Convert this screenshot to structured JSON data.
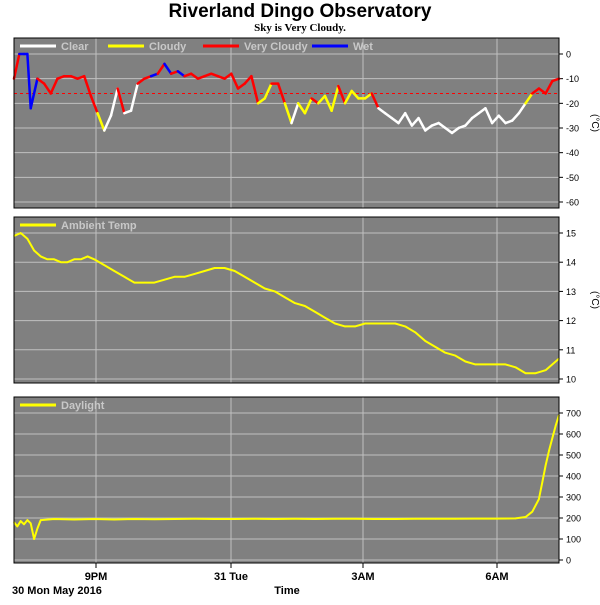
{
  "header": {
    "title": "Riverland Dingo Observatory",
    "subtitle": "Sky is Very Cloudy."
  },
  "footer": {
    "date": "30 Mon May 2016",
    "xlabel": "Time"
  },
  "x_ticks": [
    "9PM",
    "31 Tue",
    "3AM",
    "6AM"
  ],
  "colors": {
    "panel_bg": "#808080",
    "grid": "#c0c0c0",
    "clear": "#ffffff",
    "cloudy": "#ffff00",
    "very_cloudy": "#ff0000",
    "wet": "#0000ff",
    "ambient": "#ffff00",
    "daylight": "#ffff00",
    "threshold": "#ff0000"
  },
  "chart_data": [
    {
      "type": "line",
      "title": "",
      "legend": [
        "Clear",
        "Cloudy",
        "Very Cloudy",
        "Wet"
      ],
      "ylabel": "(°C)",
      "ylim": [
        -60,
        0
      ],
      "yticks": [
        "0",
        "-10",
        "-20",
        "-30",
        "-40",
        "-50",
        "-60"
      ],
      "threshold": -16,
      "x_range_hours": [
        18.0,
        24.0
      ],
      "series": [
        {
          "name": "Sky Temp",
          "x": [
            "18:00",
            "18:08",
            "18:15",
            "18:20",
            "18:25",
            "18:35",
            "18:45",
            "18:55",
            "19:05",
            "19:15",
            "19:25",
            "19:35",
            "19:45",
            "19:55",
            "20:05",
            "20:15",
            "20:25",
            "20:35",
            "20:45",
            "20:55",
            "21:05",
            "21:15",
            "21:25",
            "21:35",
            "21:45",
            "21:55",
            "22:05",
            "22:15",
            "22:25",
            "22:35",
            "22:45",
            "22:55",
            "23:05",
            "23:15",
            "23:25",
            "23:35",
            "23:45",
            "23:55",
            "00:05",
            "00:15",
            "00:25",
            "00:35",
            "00:45",
            "00:55",
            "01:05",
            "01:15",
            "01:25",
            "01:35",
            "01:45",
            "01:55",
            "02:05",
            "02:15",
            "02:25",
            "02:35",
            "02:45",
            "02:55",
            "03:05",
            "03:15",
            "03:25",
            "03:35",
            "03:45",
            "03:55",
            "04:05",
            "04:15",
            "04:25",
            "04:35",
            "04:45",
            "04:55",
            "05:05",
            "05:15",
            "05:25",
            "05:35",
            "05:45",
            "05:55",
            "06:05",
            "06:15",
            "06:25",
            "06:35",
            "06:45",
            "06:55",
            "07:05",
            "07:15",
            "07:25",
            "07:35"
          ],
          "y": [
            -10,
            0,
            0,
            0,
            -22,
            -10,
            -12,
            -16,
            -10,
            -9,
            -9,
            -10,
            -9,
            -17,
            -24,
            -31,
            -25,
            -14,
            -24,
            -23,
            -12,
            -10,
            -9,
            -8,
            -4,
            -8,
            -7,
            -9,
            -8,
            -10,
            -9,
            -8,
            -9,
            -10,
            -8,
            -14,
            -12,
            -9,
            -20,
            -18,
            -12,
            -12,
            -20,
            -28,
            -20,
            -24,
            -18,
            -20,
            -17,
            -23,
            -13,
            -20,
            -15,
            -18,
            -18,
            -16,
            -22,
            -24,
            -26,
            -28,
            -24,
            -29,
            -26,
            -31,
            -29,
            -28,
            -30,
            -32,
            -30,
            -29,
            -26,
            -24,
            -22,
            -28,
            -25,
            -28,
            -27,
            -24,
            -20,
            -16,
            -14,
            -16,
            -11,
            -10
          ],
          "condition": [
            "Very Cloudy",
            "Wet",
            "Wet",
            "Wet",
            "Wet",
            "Very Cloudy",
            "Very Cloudy",
            "Very Cloudy",
            "Very Cloudy",
            "Very Cloudy",
            "Very Cloudy",
            "Very Cloudy",
            "Very Cloudy",
            "Very Cloudy",
            "Cloudy",
            "Clear",
            "Clear",
            "Very Cloudy",
            "Clear",
            "Clear",
            "Very Cloudy",
            "Very Cloudy",
            "Wet",
            "Very Cloudy",
            "Wet",
            "Very Cloudy",
            "Wet",
            "Very Cloudy",
            "Very Cloudy",
            "Very Cloudy",
            "Very Cloudy",
            "Very Cloudy",
            "Very Cloudy",
            "Very Cloudy",
            "Very Cloudy",
            "Very Cloudy",
            "Very Cloudy",
            "Very Cloudy",
            "Cloudy",
            "Cloudy",
            "Very Cloudy",
            "Very Cloudy",
            "Cloudy",
            "Clear",
            "Cloudy",
            "Cloudy",
            "Very Cloudy",
            "Cloudy",
            "Cloudy",
            "Cloudy",
            "Very Cloudy",
            "Cloudy",
            "Cloudy",
            "Cloudy",
            "Cloudy",
            "Very Cloudy",
            "Clear",
            "Clear",
            "Clear",
            "Clear",
            "Clear",
            "Clear",
            "Clear",
            "Clear",
            "Clear",
            "Clear",
            "Clear",
            "Clear",
            "Clear",
            "Clear",
            "Clear",
            "Clear",
            "Clear",
            "Clear",
            "Clear",
            "Clear",
            "Clear",
            "Clear",
            "Cloudy",
            "Very Cloudy",
            "Very Cloudy",
            "Very Cloudy",
            "Very Cloudy",
            "Very Cloudy"
          ]
        }
      ]
    },
    {
      "type": "line",
      "title": "",
      "legend": [
        "Ambient Temp"
      ],
      "ylabel": "(°C)",
      "ylim": [
        10,
        15
      ],
      "yticks": [
        "15",
        "14",
        "13",
        "12",
        "11",
        "10"
      ],
      "series": [
        {
          "name": "Ambient Temp",
          "x": [
            "18:00",
            "18:10",
            "18:20",
            "18:30",
            "18:40",
            "18:50",
            "19:00",
            "19:10",
            "19:20",
            "19:30",
            "19:40",
            "19:50",
            "20:00",
            "20:15",
            "20:30",
            "20:45",
            "21:00",
            "21:15",
            "21:30",
            "21:45",
            "22:00",
            "22:15",
            "22:30",
            "22:45",
            "23:00",
            "23:15",
            "23:30",
            "23:45",
            "00:00",
            "00:15",
            "00:30",
            "00:45",
            "01:00",
            "01:15",
            "01:30",
            "01:45",
            "02:00",
            "02:15",
            "02:30",
            "02:45",
            "03:00",
            "03:15",
            "03:30",
            "03:45",
            "04:00",
            "04:15",
            "04:30",
            "04:45",
            "05:00",
            "05:15",
            "05:30",
            "05:45",
            "06:00",
            "06:15",
            "06:30",
            "06:45",
            "07:00",
            "07:15",
            "07:35"
          ],
          "y": [
            14.9,
            15.0,
            14.8,
            14.4,
            14.2,
            14.1,
            14.1,
            14.0,
            14.0,
            14.1,
            14.1,
            14.2,
            14.1,
            13.9,
            13.7,
            13.5,
            13.3,
            13.3,
            13.3,
            13.4,
            13.5,
            13.5,
            13.6,
            13.7,
            13.8,
            13.8,
            13.7,
            13.5,
            13.3,
            13.1,
            13.0,
            12.8,
            12.6,
            12.5,
            12.3,
            12.1,
            11.9,
            11.8,
            11.8,
            11.9,
            11.9,
            11.9,
            11.9,
            11.8,
            11.6,
            11.3,
            11.1,
            10.9,
            10.8,
            10.6,
            10.5,
            10.5,
            10.5,
            10.5,
            10.4,
            10.2,
            10.2,
            10.3,
            10.7
          ]
        }
      ]
    },
    {
      "type": "line",
      "title": "",
      "legend": [
        "Daylight"
      ],
      "ylim": [
        0,
        700
      ],
      "yticks": [
        "700",
        "600",
        "500",
        "400",
        "300",
        "200",
        "100",
        "0"
      ],
      "series": [
        {
          "name": "Daylight",
          "x": [
            "18:00",
            "18:05",
            "18:10",
            "18:15",
            "18:20",
            "18:25",
            "18:30",
            "18:35",
            "18:40",
            "19:00",
            "19:30",
            "20:00",
            "20:30",
            "21:00",
            "21:30",
            "22:00",
            "22:30",
            "23:00",
            "23:30",
            "00:00",
            "00:30",
            "01:00",
            "01:30",
            "02:00",
            "02:30",
            "03:00",
            "03:30",
            "04:00",
            "04:30",
            "05:00",
            "05:30",
            "06:00",
            "06:30",
            "06:45",
            "06:55",
            "07:05",
            "07:10",
            "07:15",
            "07:20",
            "07:25",
            "07:30",
            "07:35"
          ],
          "y": [
            180,
            160,
            185,
            170,
            190,
            175,
            100,
            150,
            190,
            195,
            193,
            195,
            193,
            195,
            194,
            195,
            196,
            195,
            195,
            196,
            195,
            196,
            195,
            196,
            196,
            195,
            195,
            196,
            196,
            196,
            197,
            197,
            198,
            205,
            230,
            290,
            370,
            450,
            520,
            580,
            640,
            690
          ]
        }
      ]
    }
  ]
}
